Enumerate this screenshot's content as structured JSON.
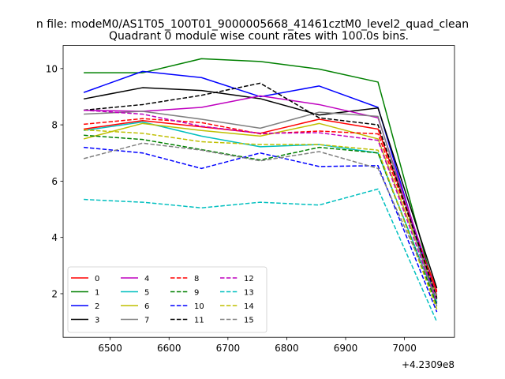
{
  "chart_data": {
    "type": "line",
    "suptitle": "n file: modeM0/AS1T05_100T01_9000005668_41461cztM0_level2_quad_clean",
    "title": "Quadrant 0 module wise count rates with 100.0s bins.",
    "xlabel": "",
    "ylabel": "",
    "x_offset_label": "+4.2309e8",
    "xlim": [
      6420,
      7085
    ],
    "ylim": [
      0.45,
      10.82
    ],
    "xticks": [
      6500,
      6600,
      6700,
      6800,
      6900,
      7000
    ],
    "yticks": [
      2,
      4,
      6,
      8,
      10
    ],
    "x": [
      6455,
      6555,
      6655,
      6755,
      6855,
      6955,
      7055
    ],
    "grid": false,
    "legend_position": "lower-left",
    "series": [
      {
        "name": "0",
        "color": "#ff0000",
        "dash": "solid",
        "values": [
          7.85,
          8.15,
          7.93,
          7.7,
          8.2,
          7.85,
          2.1
        ]
      },
      {
        "name": "1",
        "color": "#008000",
        "dash": "solid",
        "values": [
          9.85,
          9.85,
          10.35,
          10.25,
          9.98,
          9.52,
          1.8
        ]
      },
      {
        "name": "2",
        "color": "#0000ff",
        "dash": "solid",
        "values": [
          9.15,
          9.9,
          9.68,
          9.0,
          9.38,
          8.62,
          1.65
        ]
      },
      {
        "name": "3",
        "color": "#000000",
        "dash": "solid",
        "values": [
          8.92,
          9.32,
          9.22,
          8.93,
          8.35,
          8.6,
          2.2
        ]
      },
      {
        "name": "4",
        "color": "#bf00bf",
        "dash": "solid",
        "values": [
          8.52,
          8.48,
          8.62,
          9.03,
          8.72,
          8.25,
          1.95
        ]
      },
      {
        "name": "5",
        "color": "#00bfbf",
        "dash": "solid",
        "values": [
          7.8,
          8.1,
          7.6,
          7.22,
          7.3,
          7.0,
          1.7
        ]
      },
      {
        "name": "6",
        "color": "#bfbf00",
        "dash": "solid",
        "values": [
          7.5,
          8.05,
          7.8,
          7.6,
          8.05,
          7.5,
          1.9
        ]
      },
      {
        "name": "7",
        "color": "#808080",
        "dash": "solid",
        "values": [
          8.38,
          8.48,
          8.2,
          7.88,
          8.45,
          8.3,
          1.55
        ]
      },
      {
        "name": "8",
        "color": "#ff0000",
        "dash": "dashed",
        "values": [
          8.02,
          8.22,
          8.08,
          7.68,
          7.78,
          7.68,
          2.05
        ]
      },
      {
        "name": "9",
        "color": "#008000",
        "dash": "dashed",
        "values": [
          7.63,
          7.48,
          7.12,
          6.75,
          7.2,
          7.0,
          1.6
        ]
      },
      {
        "name": "10",
        "color": "#0000ff",
        "dash": "dashed",
        "values": [
          7.2,
          7.0,
          6.45,
          7.0,
          6.52,
          6.55,
          1.35
        ]
      },
      {
        "name": "11",
        "color": "#000000",
        "dash": "dashed",
        "values": [
          8.52,
          8.72,
          9.05,
          9.48,
          8.25,
          8.0,
          1.85
        ]
      },
      {
        "name": "12",
        "color": "#bf00bf",
        "dash": "dashed",
        "values": [
          8.52,
          8.38,
          7.95,
          7.7,
          7.72,
          7.45,
          1.72
        ]
      },
      {
        "name": "13",
        "color": "#00bfbf",
        "dash": "dashed",
        "values": [
          5.35,
          5.25,
          5.05,
          5.25,
          5.15,
          5.72,
          1.0
        ]
      },
      {
        "name": "14",
        "color": "#bfbf00",
        "dash": "dashed",
        "values": [
          7.82,
          7.7,
          7.4,
          7.3,
          7.3,
          7.1,
          1.45
        ]
      },
      {
        "name": "15",
        "color": "#808080",
        "dash": "dashed",
        "values": [
          6.8,
          7.35,
          7.1,
          6.72,
          7.05,
          6.45,
          1.85
        ]
      }
    ]
  }
}
